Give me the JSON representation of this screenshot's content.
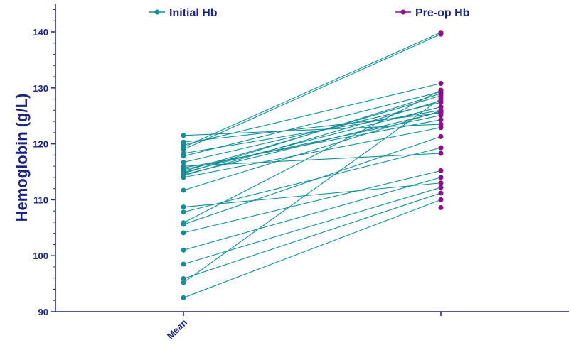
{
  "chart_data": {
    "type": "line",
    "title": "",
    "xlabel": "",
    "ylabel": "Hemoglobin (g/L)",
    "categories": [
      "Mean",
      ""
    ],
    "ylim": [
      90,
      145
    ],
    "yticks": [
      90,
      100,
      110,
      120,
      130,
      140
    ],
    "grid": false,
    "legend_position": "top",
    "series": [
      {
        "name": "Initial Hb",
        "color": "#138d96"
      },
      {
        "name": "Pre-op Hb",
        "color": "#8b0f8b"
      }
    ],
    "pairs": [
      [
        121.5,
        123.5
      ],
      [
        120.3,
        125.5
      ],
      [
        119.8,
        130.8
      ],
      [
        119.4,
        139.9
      ],
      [
        119.0,
        139.6
      ],
      [
        118.3,
        126.0
      ],
      [
        117.8,
        129.3
      ],
      [
        116.7,
        127.4
      ],
      [
        116.0,
        118.3
      ],
      [
        115.7,
        124.3
      ],
      [
        115.4,
        125.1
      ],
      [
        115.1,
        128.6
      ],
      [
        114.9,
        126.6
      ],
      [
        114.7,
        129.0
      ],
      [
        114.5,
        125.7
      ],
      [
        114.3,
        127.7
      ],
      [
        114.0,
        122.9
      ],
      [
        111.7,
        125.9
      ],
      [
        108.7,
        113.0
      ],
      [
        107.8,
        119.3
      ],
      [
        105.9,
        129.6
      ],
      [
        105.6,
        121.3
      ],
      [
        104.1,
        115.2
      ],
      [
        101.0,
        114.0
      ],
      [
        98.5,
        112.2
      ],
      [
        95.9,
        111.2
      ],
      [
        95.2,
        128.1
      ],
      [
        92.5,
        110.0
      ]
    ],
    "extra_preop_points": [
      108.6
    ]
  }
}
